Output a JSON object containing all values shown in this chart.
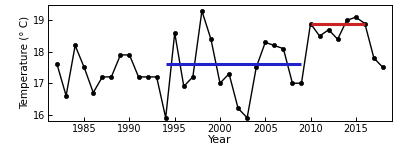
{
  "years": [
    1982,
    1983,
    1984,
    1985,
    1986,
    1987,
    1988,
    1989,
    1990,
    1991,
    1992,
    1993,
    1994,
    1995,
    1996,
    1997,
    1998,
    1999,
    2000,
    2001,
    2002,
    2003,
    2004,
    2005,
    2006,
    2007,
    2008,
    2009,
    2010,
    2011,
    2012,
    2013,
    2014,
    2015,
    2016,
    2017,
    2018
  ],
  "temps": [
    17.6,
    16.6,
    18.2,
    17.5,
    16.7,
    17.2,
    17.2,
    17.9,
    17.9,
    17.2,
    17.2,
    17.2,
    15.9,
    18.6,
    16.9,
    17.2,
    19.3,
    18.4,
    17.0,
    17.3,
    16.2,
    15.9,
    17.5,
    18.3,
    18.2,
    18.1,
    17.0,
    17.0,
    18.9,
    18.5,
    18.7,
    18.4,
    19.0,
    19.1,
    18.9,
    17.8,
    17.5
  ],
  "blue_line_x": [
    1994,
    2009
  ],
  "blue_line_y": [
    17.6,
    17.6
  ],
  "red_line_x": [
    2010,
    2016
  ],
  "red_line_y": [
    18.9,
    18.9
  ],
  "xlabel": "Year",
  "ylabel": "Temperature (° C)",
  "xlim": [
    1981,
    2019
  ],
  "ylim": [
    15.8,
    19.5
  ],
  "yticks": [
    16,
    17,
    18,
    19
  ],
  "xticks": [
    1985,
    1990,
    1995,
    2000,
    2005,
    2010,
    2015
  ],
  "line_color": "black",
  "marker_color": "black",
  "blue_color": "#2222cc",
  "red_color": "#cc2222",
  "bg_color": "#ffffff",
  "line_width": 1.0,
  "marker_size": 3.0,
  "blue_lw": 2.2,
  "red_lw": 2.2,
  "tick_labelsize": 7,
  "xlabel_fontsize": 8,
  "ylabel_fontsize": 7.5
}
